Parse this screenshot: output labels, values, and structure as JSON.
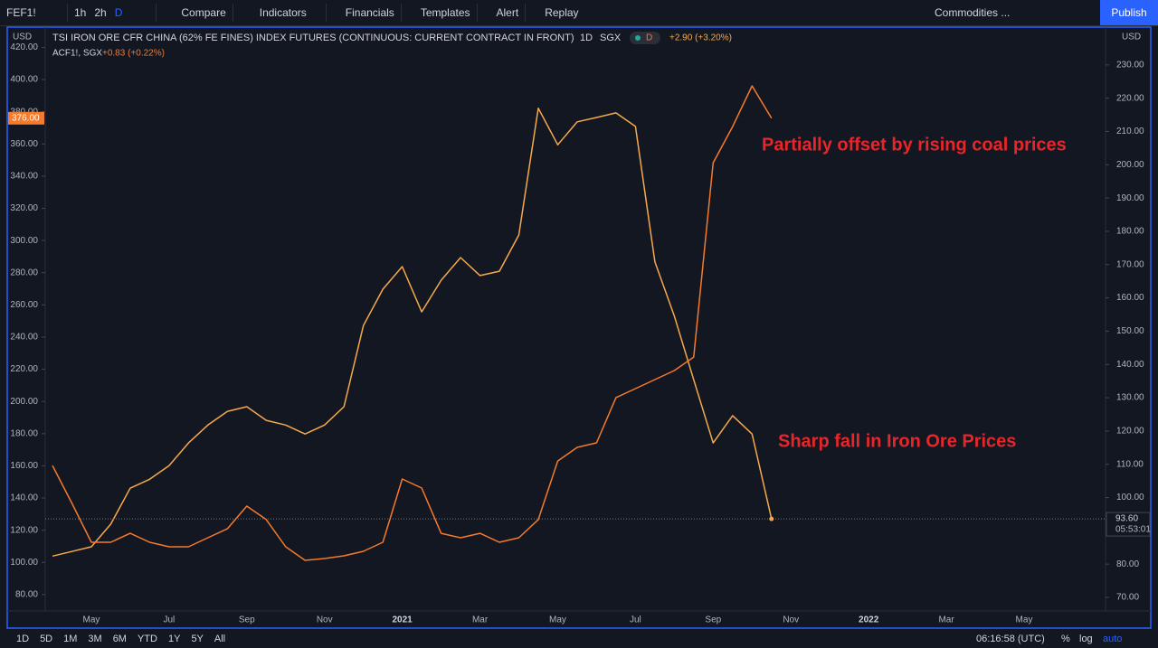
{
  "toolbar": {
    "symbol": "FEF1!",
    "intervals": [
      "1h",
      "2h",
      "D"
    ],
    "buttons": [
      "Compare",
      "Indicators",
      "Financials",
      "Templates",
      "Alert",
      "Replay"
    ],
    "watchlist": "Commodities ...",
    "publish": "Publish"
  },
  "bottom_bar": {
    "ranges": [
      "1D",
      "5D",
      "1M",
      "3M",
      "6M",
      "YTD",
      "1Y",
      "5Y",
      "All"
    ],
    "time": "06:16:58 (UTC)",
    "scale": [
      "%",
      "log",
      "auto"
    ]
  },
  "chart_data": {
    "type": "line",
    "legend": {
      "title": "TSI IRON ORE CFR CHINA (62% FE FINES) INDEX FUTURES (CONTINUOUS: CURRENT CONTRACT IN FRONT)",
      "interval": "1D",
      "exchange": "SGX",
      "badge": "D",
      "change": "+2.90 (+3.20%)",
      "second_name": "ACF1!, SGX",
      "second_change": "+0.83 (+0.22%)"
    },
    "currency": "USD",
    "countdown": "05:53:01",
    "annotations": [
      "Partially offset by rising coal prices",
      "Sharp fall in Iron Ore Prices"
    ],
    "categories": [
      null,
      null,
      "May",
      null,
      null,
      null,
      "Jul",
      null,
      null,
      null,
      "Sep",
      null,
      null,
      null,
      "Nov",
      null,
      null,
      null,
      "2021",
      null,
      null,
      null,
      "Mar",
      null,
      null,
      null,
      "May",
      null,
      null,
      null,
      "Jul",
      null,
      null,
      null,
      "Sep",
      null,
      null,
      null,
      "Nov",
      null,
      null,
      null,
      "2022",
      null,
      null,
      null,
      "Mar",
      null,
      null,
      null,
      "May",
      null,
      null,
      null,
      null
    ],
    "series": [
      {
        "name": "TSI IRON ORE CFR CHINA (62% FE FINES) INDEX FUTURES (CONTINUOUS: CURRENT CONTRACT IN FRONT)",
        "color": "#f6a94a",
        "axis": "y2",
        "values": [
          82.4,
          83.8,
          85.2,
          92,
          102.8,
          105.5,
          109.6,
          116.4,
          121.8,
          125.9,
          127.3,
          123.2,
          121.8,
          119.1,
          121.8,
          127.3,
          151.7,
          162.6,
          169.4,
          155.8,
          165.3,
          172.1,
          166.7,
          168,
          178.9,
          217,
          206,
          212.9,
          214.2,
          215.6,
          211.5,
          170.8,
          154.5,
          135.4,
          116.4,
          124.6,
          119.1,
          93.6,
          null,
          null,
          null,
          null,
          null,
          null,
          null,
          null,
          null,
          null,
          null,
          null,
          null,
          null,
          null,
          null,
          null
        ],
        "value_labels": [
          null,
          null,
          null,
          null,
          null,
          null,
          null,
          null,
          null,
          null,
          null,
          null,
          null,
          null,
          null,
          null,
          null,
          null,
          null,
          null,
          null,
          null,
          null,
          null,
          null,
          null,
          null,
          null,
          null,
          null,
          null,
          null,
          null,
          null,
          null,
          null,
          null,
          "93.60",
          null,
          null,
          null,
          null,
          null,
          null,
          null,
          null,
          null,
          null,
          null,
          null,
          null,
          null,
          null,
          null,
          null
        ]
      },
      {
        "name": "ACF1!, SGX",
        "color": "#f57a2c",
        "axis": "y",
        "values": [
          160.2,
          136.7,
          112.5,
          112.5,
          118.1,
          112.5,
          109.7,
          109.7,
          115.3,
          120.9,
          135,
          126.6,
          109.7,
          101.3,
          102.4,
          104.1,
          106.9,
          112.5,
          151.8,
          146.2,
          118.1,
          115.3,
          118.1,
          112.5,
          115.3,
          126.6,
          163,
          171.5,
          174.3,
          202.4,
          208,
          213.6,
          219.2,
          227.6,
          348.3,
          370.8,
          396.1,
          376,
          null,
          null,
          null,
          null,
          null,
          null,
          null,
          null,
          null,
          null,
          null,
          null,
          null,
          null,
          null,
          null,
          null
        ],
        "value_labels": [
          null,
          null,
          null,
          null,
          null,
          null,
          null,
          null,
          null,
          null,
          null,
          null,
          null,
          null,
          null,
          null,
          null,
          null,
          null,
          null,
          null,
          null,
          null,
          null,
          null,
          null,
          null,
          null,
          null,
          null,
          null,
          null,
          null,
          null,
          null,
          null,
          null,
          "376.00",
          null,
          null,
          null,
          null,
          null,
          null,
          null,
          null,
          null,
          null,
          null,
          null,
          null,
          null,
          null,
          null,
          null
        ]
      }
    ],
    "ylim": [
      70.4,
      429.8
    ],
    "yticks": [
      {
        "value": 80,
        "label": "80.00"
      },
      {
        "value": 100,
        "label": "100.00"
      },
      {
        "value": 120,
        "label": "120.00"
      },
      {
        "value": 140,
        "label": "140.00"
      },
      {
        "value": 160,
        "label": "160.00"
      },
      {
        "value": 180,
        "label": "180.00"
      },
      {
        "value": 200,
        "label": "200.00"
      },
      {
        "value": 220,
        "label": "220.00"
      },
      {
        "value": 240,
        "label": "240.00"
      },
      {
        "value": 260,
        "label": "260.00"
      },
      {
        "value": 280,
        "label": "280.00"
      },
      {
        "value": 300,
        "label": "300.00"
      },
      {
        "value": 320,
        "label": "320.00"
      },
      {
        "value": 340,
        "label": "340.00"
      },
      {
        "value": 360,
        "label": "360.00"
      },
      {
        "value": 380,
        "label": "380.00"
      },
      {
        "value": 400,
        "label": "400.00"
      },
      {
        "value": 420,
        "label": "420.00"
      }
    ],
    "y2lim": [
      66.2,
      240
    ],
    "y2ticks": [
      {
        "value": 70,
        "label": "70.00"
      },
      {
        "value": 80,
        "label": "80.00"
      },
      {
        "value": 90,
        "label": "90.00"
      },
      {
        "value": 100,
        "label": "100.00"
      },
      {
        "value": 110,
        "label": "110.00"
      },
      {
        "value": 120,
        "label": "120.00"
      },
      {
        "value": 130,
        "label": "130.00"
      },
      {
        "value": 140,
        "label": "140.00"
      },
      {
        "value": 150,
        "label": "150.00"
      },
      {
        "value": 160,
        "label": "160.00"
      },
      {
        "value": 170,
        "label": "170.00"
      },
      {
        "value": 180,
        "label": "180.00"
      },
      {
        "value": 190,
        "label": "190.00"
      },
      {
        "value": 200,
        "label": "200.00"
      },
      {
        "value": 210,
        "label": "210.00"
      },
      {
        "value": 220,
        "label": "220.00"
      },
      {
        "value": 230,
        "label": "230.00"
      }
    ],
    "grid": false
  }
}
